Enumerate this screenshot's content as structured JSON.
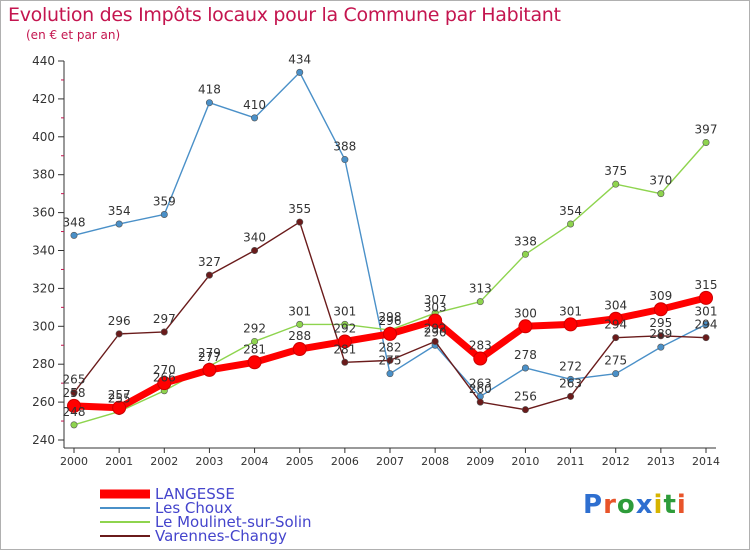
{
  "header": {
    "title": "Evolution des Impôts locaux pour la Commune par Habitant",
    "subtitle": "(en € et par an)"
  },
  "logo": {
    "text": "Proxiti",
    "colors": [
      "#2e6fd0",
      "#e8542a",
      "#2e9c3a",
      "#2e6fd0",
      "#d6b400",
      "#2e9c3a",
      "#e8542a"
    ]
  },
  "chart_data": {
    "type": "line",
    "title": "Evolution des Impôts locaux pour la Commune par Habitant",
    "subtitle": "(en € et par an)",
    "x": [
      "2000",
      "2001",
      "2002",
      "2003",
      "2004",
      "2005",
      "2006",
      "2007",
      "2008",
      "2009",
      "2010",
      "2011",
      "2012",
      "2013",
      "2014"
    ],
    "ylim": [
      240,
      440
    ],
    "yticks": [
      240,
      260,
      280,
      300,
      320,
      340,
      360,
      380,
      400,
      420,
      440
    ],
    "grid": false,
    "legend_position": "bottom-left",
    "series": [
      {
        "name": "Les Choux",
        "color": "#4a90c8",
        "values": [
          348,
          354,
          359,
          418,
          410,
          434,
          388,
          275,
          290,
          263,
          278,
          272,
          275,
          289,
          301
        ],
        "labels": [
          "348",
          "354",
          "359",
          "418",
          "410",
          "434",
          "388",
          "275",
          "290",
          "263",
          "278",
          "272",
          "275",
          "289",
          "301"
        ]
      },
      {
        "name": "Le Moulinet-sur-Solin",
        "color": "#8ed44e",
        "values": [
          248,
          255,
          266,
          279,
          292,
          301,
          301,
          298,
          307,
          313,
          338,
          354,
          375,
          370,
          397
        ],
        "labels": [
          "248",
          "255",
          "266",
          "279",
          "292",
          "301",
          "301",
          "298",
          "307",
          "313",
          "338",
          "354",
          "375",
          "370",
          "397"
        ]
      },
      {
        "name": "Varennes-Changy",
        "color": "#6a1b1b",
        "values": [
          265,
          296,
          297,
          327,
          340,
          355,
          281,
          282,
          292,
          260,
          256,
          263,
          294,
          295,
          294
        ],
        "labels": [
          "265",
          "296",
          "297",
          "327",
          "340",
          "355",
          "281",
          "282",
          "292",
          "260",
          "256",
          "263",
          "294",
          "295",
          "294"
        ]
      },
      {
        "name": "LANGESSE",
        "color": "#ff0000",
        "values": [
          258,
          257,
          270,
          277,
          281,
          288,
          292,
          296,
          303,
          283,
          300,
          301,
          304,
          309,
          315
        ],
        "labels": [
          "258",
          "257",
          "270",
          "277",
          "281",
          "288",
          "292",
          "296",
          "303",
          "283",
          "300",
          "301",
          "304",
          "309",
          "315"
        ]
      }
    ],
    "legend": [
      {
        "name": "LANGESSE",
        "color": "#ff0000"
      },
      {
        "name": "Les Choux",
        "color": "#4a90c8"
      },
      {
        "name": "Le Moulinet-sur-Solin",
        "color": "#8ed44e"
      },
      {
        "name": "Varennes-Changy",
        "color": "#6a1b1b"
      }
    ]
  }
}
